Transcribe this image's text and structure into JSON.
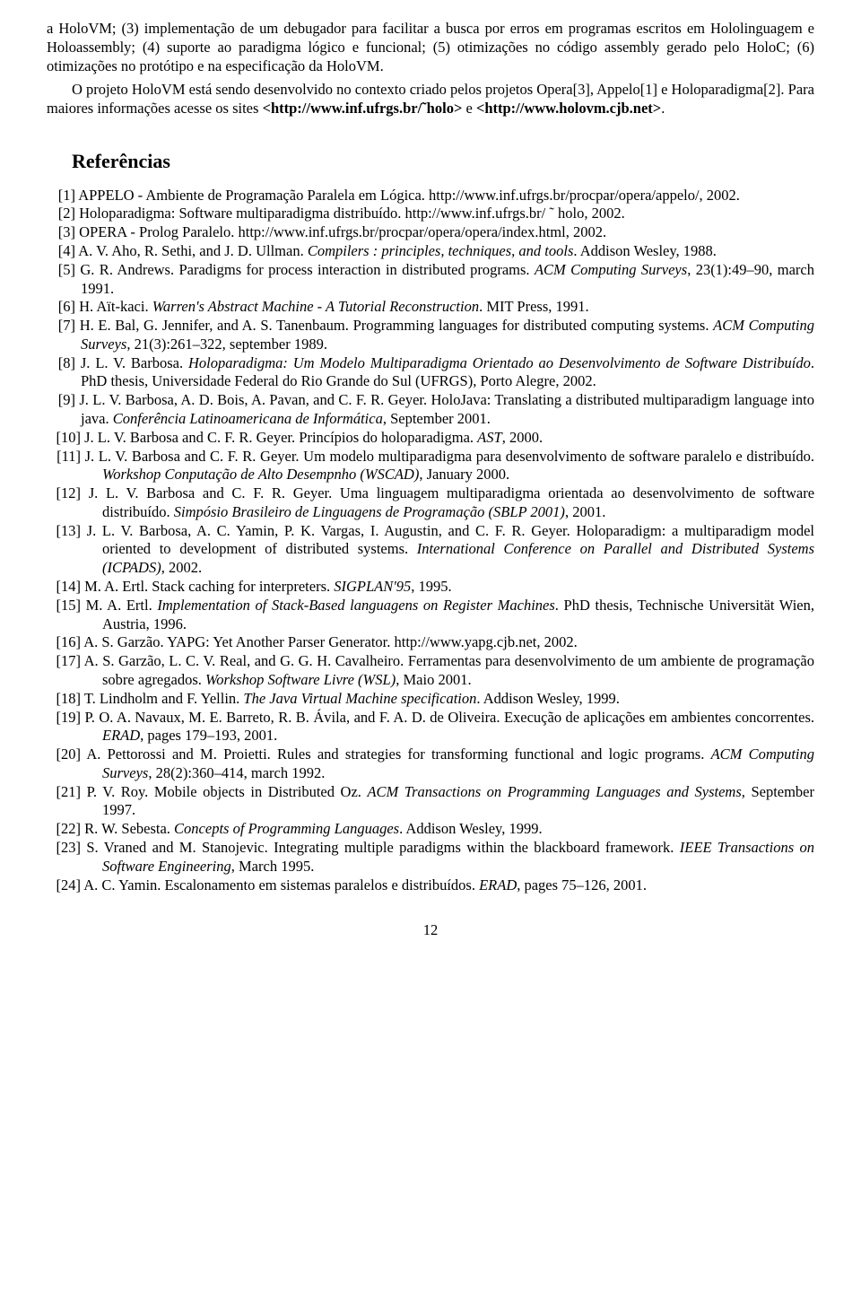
{
  "body": {
    "p1": "a HoloVM; (3) implementação de um debugador para facilitar a busca por erros em programas escritos em Hololinguagem e Holoassembly; (4) suporte ao paradigma lógico e funcional; (5) otimizações no código assembly gerado pelo HoloC; (6) otimizações no protótipo e na especificação da HoloVM.",
    "p2a": "O projeto HoloVM está sendo desenvolvido no contexto criado pelos projetos Opera[3], Appelo[1] e Holoparadigma[2].   Para maiores informações acesse os sites ",
    "p2b": "<http://www.inf.ufrgs.br/˜holo>",
    "p2c": " e ",
    "p2d": "<http://www.holovm.cjb.net>",
    "p2e": "."
  },
  "refs_title": "Referências",
  "refs": {
    "r1": {
      "n": "[1]",
      "t": "APPELO - Ambiente de Programação Paralela em Lógica. http://www.inf.ufrgs.br/procpar/opera/appelo/, 2002."
    },
    "r2": {
      "n": "[2]",
      "t": "Holoparadigma: Software multiparadigma distribuído. http://www.inf.ufrgs.br/ ˜ holo, 2002."
    },
    "r3": {
      "n": "[3]",
      "t": "OPERA - Prolog Paralelo. http://www.inf.ufrgs.br/procpar/opera/opera/index.html, 2002."
    },
    "r4": {
      "n": "[4]",
      "a": "A. V. Aho, R. Sethi, and J. D. Ullman.  ",
      "i": "Compilers : principles, techniques, and tools",
      "b": ".  Addison Wesley, 1988."
    },
    "r5": {
      "n": "[5]",
      "a": "G. R. Andrews.   Paradigms for process interaction in distributed programs.   ",
      "i": "ACM Computing Surveys",
      "b": ", 23(1):49–90, march 1991."
    },
    "r6": {
      "n": "[6]",
      "a": "H. Aït-kaci. ",
      "i": "Warren's Abstract Machine - A Tutorial Reconstruction",
      "b": ". MIT Press, 1991."
    },
    "r7": {
      "n": "[7]",
      "a": "H. E. Bal, G. Jennifer, and A. S. Tanenbaum.  Programming languages for distributed computing systems. ",
      "i": "ACM Computing Surveys",
      "b": ", 21(3):261–322, september 1989."
    },
    "r8": {
      "n": "[8]",
      "a": "J. L. V. Barbosa. ",
      "i": "Holoparadigma: Um Modelo Multiparadigma Orientado ao Desenvolvimento de Software Distribuído",
      "b": ". PhD thesis, Universidade Federal do Rio Grande do Sul (UFRGS), Porto Alegre, 2002."
    },
    "r9": {
      "n": "[9]",
      "a": "J. L. V. Barbosa, A. D. Bois, A. Pavan, and C. F. R. Geyer.  HoloJava: Translating a distributed multiparadigm language into java.  ",
      "i": "Conferência Latinoamericana de Informática",
      "b": ", September 2001."
    },
    "r10": {
      "n": "[10]",
      "a": "J. L. V. Barbosa and C. F. R. Geyer.  Princípios do holoparadigma.  ",
      "i": "AST",
      "b": ", 2000."
    },
    "r11": {
      "n": "[11]",
      "a": "J. L. V. Barbosa and C. F. R. Geyer. Um modelo multiparadigma para desenvolvimento de software paralelo e distribuído.  ",
      "i": "Workshop Conputação de Alto Desempnho (WSCAD)",
      "b": ", January 2000."
    },
    "r12": {
      "n": "[12]",
      "a": "J. L. V. Barbosa and C. F. R. Geyer.   Uma linguagem multiparadigma orientada ao desenvolvimento de software distribuído.  ",
      "i": "Simpósio Brasileiro de Linguagens de Programação (SBLP 2001)",
      "b": ", 2001."
    },
    "r13": {
      "n": "[13]",
      "a": "J. L. V. Barbosa, A. C. Yamin, P. K. Vargas, I. Augustin, and C. F. R. Geyer.   Holoparadigm: a multiparadigm model oriented to development of distributed systems.  ",
      "i": "International Conference on Parallel and Distributed Systems (ICPADS)",
      "b": ", 2002."
    },
    "r14": {
      "n": "[14]",
      "a": "M. A. Ertl.  Stack caching for interpreters.  ",
      "i": "SIGPLAN'95",
      "b": ", 1995."
    },
    "r15": {
      "n": "[15]",
      "a": "M. A. Ertl.   ",
      "i": "Implementation of Stack-Based languagens on Register Machines",
      "b": ".   PhD thesis, Technische Universität Wien, Austria, 1996."
    },
    "r16": {
      "n": "[16]",
      "a": "A. S. Garzão.  YAPG: Yet Another Parser Generator. http://www.yapg.cjb.net, 2002."
    },
    "r17": {
      "n": "[17]",
      "a": "A. S. Garzão, L. C. V. Real, and G. G. H. Cavalheiro.  Ferramentas para desenvolvimento de um ambiente de programação sobre agregados.  ",
      "i": "Workshop Software Livre (WSL)",
      "b": ", Maio 2001."
    },
    "r18": {
      "n": "[18]",
      "a": "T. Lindholm and F. Yellin.  ",
      "i": "The Java Virtual Machine specification",
      "b": ".  Addison Wesley, 1999."
    },
    "r19": {
      "n": "[19]",
      "a": "P. O. A. Navaux, M. E. Barreto, R. B. Ávila, and F. A. D. de Oliveira. Execução de aplicações em ambientes concorrentes.  ",
      "i": "ERAD",
      "b": ", pages 179–193, 2001."
    },
    "r20": {
      "n": "[20]",
      "a": "A. Pettorossi and M. Proietti.  Rules and strategies for transforming functional and logic programs.  ",
      "i": "ACM Computing Surveys",
      "b": ", 28(2):360–414, march 1992."
    },
    "r21": {
      "n": "[21]",
      "a": "P. V. Roy.  Mobile objects in Distributed Oz.  ",
      "i": "ACM Transactions on Programming Languages and Systems",
      "b": ", September 1997."
    },
    "r22": {
      "n": "[22]",
      "a": "R. W. Sebesta.  ",
      "i": "Concepts of Programming Languages",
      "b": ".  Addison Wesley, 1999."
    },
    "r23": {
      "n": "[23]",
      "a": "S. Vraned and M. Stanojevic.   Integrating multiple paradigms within the blackboard framework.   ",
      "i": "IEEE Transactions on Software Engineering",
      "b": ", March 1995."
    },
    "r24": {
      "n": "[24]",
      "a": "A. C. Yamin.  Escalonamento em sistemas paralelos e distribuídos.  ",
      "i": "ERAD",
      "b": ", pages 75–126, 2001."
    }
  },
  "page_number": "12"
}
